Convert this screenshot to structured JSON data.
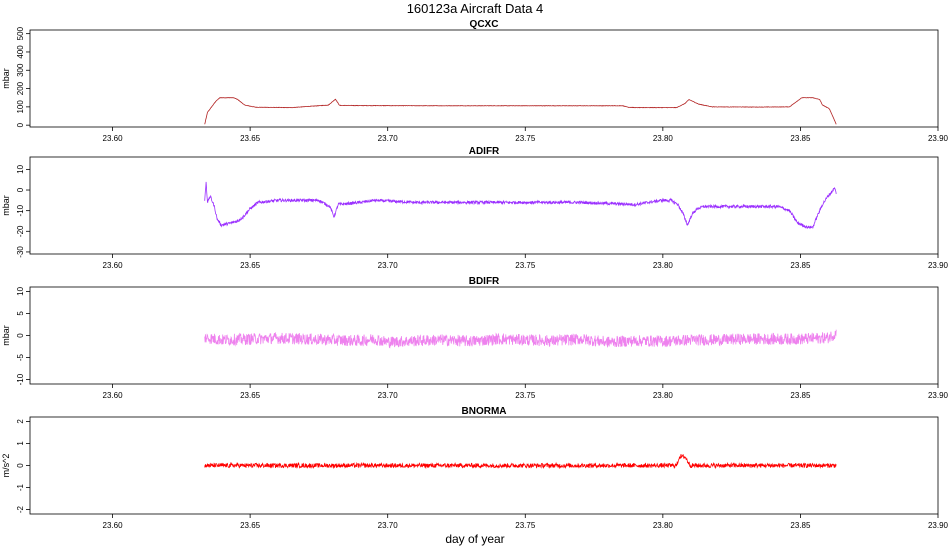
{
  "title": "160123a   Aircraft Data 4",
  "xlabel": "day of year",
  "chart_data": [
    {
      "type": "line",
      "title": "QCXC",
      "ylabel": "mbar",
      "color": "#b22222",
      "xlim": [
        23.57,
        23.9
      ],
      "ylim": [
        -10,
        520
      ],
      "xticks": [
        23.6,
        23.65,
        23.7,
        23.75,
        23.8,
        23.85,
        23.9
      ],
      "xtick_labels": [
        "23.60",
        "23.65",
        "23.70",
        "23.75",
        "23.80",
        "23.85",
        "23.90"
      ],
      "yticks": [
        0,
        100,
        200,
        300,
        400,
        500
      ],
      "ytick_labels": [
        "0",
        "100",
        "200",
        "300",
        "400",
        "500"
      ],
      "noise": 1,
      "series": [
        {
          "x": [
            23.6335,
            23.6345,
            23.636,
            23.6375,
            23.639,
            23.644,
            23.6455,
            23.648,
            23.652,
            23.665,
            23.6785,
            23.681,
            23.6825,
            23.69,
            23.72,
            23.75,
            23.78,
            23.7855,
            23.7875,
            23.79,
            23.805,
            23.808,
            23.8095,
            23.813,
            23.818,
            23.835,
            23.846,
            23.8485,
            23.8505,
            23.8545,
            23.857,
            23.858,
            23.8605,
            23.862,
            23.863
          ],
          "y": [
            5,
            70,
            100,
            130,
            150,
            150,
            140,
            110,
            98,
            96,
            110,
            142,
            108,
            107,
            106,
            106,
            106,
            106,
            98,
            96,
            96,
            118,
            140,
            115,
            100,
            99,
            100,
            128,
            150,
            150,
            140,
            110,
            90,
            40,
            5
          ]
        }
      ]
    },
    {
      "type": "line",
      "title": "ADIFR",
      "ylabel": "mbar",
      "color": "#9b30ff",
      "xlim": [
        23.57,
        23.9
      ],
      "ylim": [
        -31,
        16
      ],
      "xticks": [
        23.6,
        23.65,
        23.7,
        23.75,
        23.8,
        23.85,
        23.9
      ],
      "xtick_labels": [
        "23.60",
        "23.65",
        "23.70",
        "23.75",
        "23.80",
        "23.85",
        "23.90"
      ],
      "yticks": [
        -30,
        -20,
        -10,
        0,
        10
      ],
      "ytick_labels": [
        "-30",
        "-20",
        "-10",
        "0",
        "10"
      ],
      "noise": 0.7,
      "series": [
        {
          "x": [
            23.6335,
            23.634,
            23.6345,
            23.6355,
            23.637,
            23.638,
            23.6395,
            23.643,
            23.6455,
            23.6475,
            23.65,
            23.653,
            23.66,
            23.675,
            23.679,
            23.6805,
            23.682,
            23.69,
            23.695,
            23.71,
            23.73,
            23.75,
            23.77,
            23.79,
            23.7995,
            23.803,
            23.8055,
            23.8075,
            23.809,
            23.8105,
            23.8125,
            23.815,
            23.83,
            23.842,
            23.846,
            23.849,
            23.8525,
            23.8545,
            23.856,
            23.858,
            23.86,
            23.8625,
            23.863
          ],
          "y": [
            -5,
            4,
            -6,
            -3,
            -8,
            -14,
            -17,
            -16,
            -15,
            -13,
            -9,
            -6,
            -5,
            -5,
            -8,
            -13,
            -7,
            -6,
            -5,
            -6,
            -6,
            -6,
            -6,
            -7,
            -5,
            -5,
            -7,
            -12,
            -17,
            -12,
            -9,
            -8,
            -8,
            -8,
            -10,
            -16,
            -18,
            -18,
            -13,
            -7,
            -3,
            1,
            -2
          ]
        }
      ]
    },
    {
      "type": "line",
      "title": "BDIFR",
      "ylabel": "mbar",
      "color": "#ee82ee",
      "xlim": [
        23.57,
        23.9
      ],
      "ylim": [
        -11,
        11
      ],
      "xticks": [
        23.6,
        23.65,
        23.7,
        23.75,
        23.8,
        23.85,
        23.9
      ],
      "xtick_labels": [
        "23.60",
        "23.65",
        "23.70",
        "23.75",
        "23.80",
        "23.85",
        "23.90"
      ],
      "yticks": [
        -10,
        -5,
        0,
        5,
        10
      ],
      "ytick_labels": [
        "-10",
        "-5",
        "0",
        "5",
        "10"
      ],
      "noise": 1.3,
      "series": [
        {
          "x": [
            23.6335,
            23.64,
            23.65,
            23.66,
            23.67,
            23.68,
            23.69,
            23.695,
            23.7,
            23.71,
            23.72,
            23.73,
            23.74,
            23.75,
            23.76,
            23.77,
            23.78,
            23.79,
            23.8,
            23.81,
            23.82,
            23.83,
            23.84,
            23.85,
            23.86,
            23.863
          ],
          "y": [
            -0.5,
            -1,
            -0.8,
            -0.6,
            -0.8,
            -1,
            -1.2,
            -0.8,
            -1.5,
            -1.2,
            -1,
            -1.3,
            -0.8,
            -1,
            -1.2,
            -0.8,
            -1.5,
            -1.2,
            -1.3,
            -1,
            -1,
            -0.8,
            -0.8,
            -0.8,
            -0.5,
            0.5
          ]
        }
      ]
    },
    {
      "type": "line",
      "title": "BNORMA",
      "ylabel": "m/s^2",
      "color": "#ff0000",
      "xlim": [
        23.57,
        23.9
      ],
      "ylim": [
        -2.2,
        2.2
      ],
      "xticks": [
        23.6,
        23.65,
        23.7,
        23.75,
        23.8,
        23.85,
        23.9
      ],
      "xtick_labels": [
        "23.60",
        "23.65",
        "23.70",
        "23.75",
        "23.80",
        "23.85",
        "23.90"
      ],
      "yticks": [
        -2,
        -1,
        0,
        1,
        2
      ],
      "ytick_labels": [
        "-2",
        "-1",
        "0",
        "1",
        "2"
      ],
      "noise": 0.1,
      "series": [
        {
          "x": [
            23.6335,
            23.64,
            23.65,
            23.66,
            23.67,
            23.68,
            23.69,
            23.7,
            23.71,
            23.72,
            23.73,
            23.74,
            23.75,
            23.76,
            23.77,
            23.78,
            23.79,
            23.8,
            23.805,
            23.806,
            23.808,
            23.81,
            23.82,
            23.83,
            23.84,
            23.85,
            23.86,
            23.863
          ],
          "y": [
            0,
            0,
            0,
            0,
            0,
            0,
            0,
            0,
            0,
            0,
            0,
            0,
            0,
            0,
            0,
            0,
            0,
            0,
            0,
            0.4,
            0.4,
            0,
            0,
            0,
            0,
            0,
            0,
            0
          ]
        }
      ]
    }
  ]
}
